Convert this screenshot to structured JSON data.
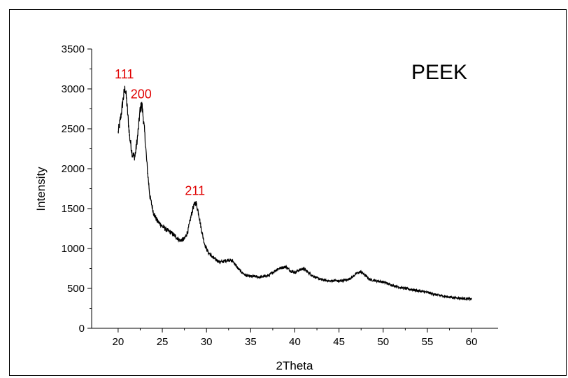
{
  "chart_data": {
    "type": "line",
    "legend_text": "PEEK",
    "xlabel": "2Theta",
    "ylabel": "Intensity",
    "xlim": [
      17,
      63
    ],
    "ylim": [
      0,
      3500
    ],
    "x_ticks": [
      20,
      25,
      30,
      35,
      40,
      45,
      50,
      55,
      60
    ],
    "y_ticks": [
      0,
      500,
      1000,
      1500,
      2000,
      2500,
      3000,
      3500
    ],
    "grid": false,
    "line_color": "#000000",
    "annotation_color": "#e00000",
    "annotations": [
      {
        "text": "111",
        "x": 20.7,
        "y": 3080
      },
      {
        "text": "200",
        "x": 22.6,
        "y": 2830
      },
      {
        "text": "211",
        "x": 28.7,
        "y": 1620
      }
    ],
    "series": [
      {
        "x": [
          20.0,
          20.3,
          20.6,
          20.8,
          21.0,
          21.3,
          21.6,
          21.9,
          22.2,
          22.5,
          22.7,
          23.0,
          23.3,
          23.6,
          24.0,
          24.4,
          25.0,
          25.5,
          26.0,
          26.5,
          27.0,
          27.5,
          27.9,
          28.2,
          28.5,
          28.8,
          29.1,
          29.4,
          29.8,
          30.2,
          30.8,
          31.5,
          32.0,
          32.5,
          33.0,
          33.5,
          34.0,
          34.5,
          35.0,
          35.5,
          36.0,
          36.5,
          37.0,
          37.5,
          38.0,
          38.5,
          39.0,
          39.5,
          40.0,
          40.5,
          41.0,
          41.5,
          42.0,
          42.5,
          43.0,
          43.5,
          44.0,
          44.5,
          45.0,
          45.5,
          46.0,
          46.5,
          47.0,
          47.5,
          48.0,
          48.5,
          49.0,
          49.5,
          50.0,
          51.0,
          52.0,
          53.0,
          54.0,
          55.0,
          56.0,
          57.0,
          58.0,
          59.0,
          60.0
        ],
        "y": [
          2450,
          2650,
          2900,
          3020,
          2800,
          2400,
          2180,
          2150,
          2400,
          2750,
          2800,
          2450,
          2000,
          1650,
          1450,
          1350,
          1280,
          1230,
          1200,
          1150,
          1100,
          1120,
          1220,
          1380,
          1520,
          1580,
          1450,
          1250,
          1050,
          950,
          880,
          830,
          840,
          860,
          840,
          760,
          700,
          660,
          650,
          650,
          640,
          650,
          660,
          700,
          740,
          760,
          770,
          720,
          700,
          730,
          750,
          700,
          660,
          630,
          610,
          600,
          590,
          600,
          590,
          600,
          610,
          640,
          690,
          710,
          660,
          610,
          600,
          590,
          580,
          540,
          510,
          490,
          470,
          450,
          420,
          400,
          385,
          375,
          365
        ]
      }
    ]
  }
}
